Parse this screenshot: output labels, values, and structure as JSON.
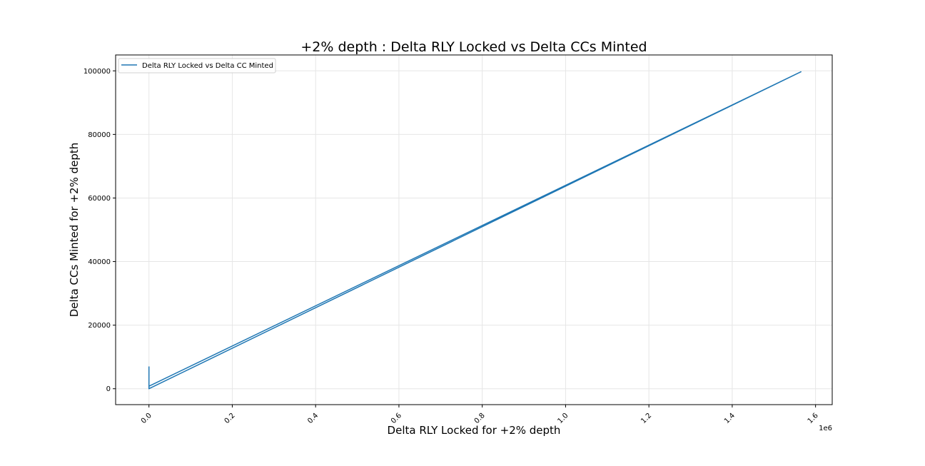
{
  "chart_data": {
    "type": "line",
    "title": "+2% depth : Delta RLY Locked vs Delta CCs Minted",
    "xlabel": "Delta RLY Locked for +2% depth",
    "ylabel": "Delta CCs Minted for +2% depth",
    "x_offset_label": "1e6",
    "x_scale_multiplier": 1000000,
    "xlim": [
      -0.08,
      1.64
    ],
    "ylim": [
      -5000,
      105000
    ],
    "x_ticks": [
      0.0,
      0.2,
      0.4,
      0.6,
      0.8,
      1.0,
      1.2,
      1.4,
      1.6
    ],
    "x_tick_labels": [
      "0.0",
      "0.2",
      "0.4",
      "0.6",
      "0.8",
      "1.0",
      "1.2",
      "1.4",
      "1.6"
    ],
    "y_ticks": [
      0,
      20000,
      40000,
      60000,
      80000,
      100000
    ],
    "y_tick_labels": [
      "0",
      "20000",
      "40000",
      "60000",
      "80000",
      "100000"
    ],
    "grid": true,
    "legend_position": "top-left",
    "colors": {
      "series": "#1f77b4",
      "grid": "#e6e6e6",
      "axis": "#000000"
    },
    "series": [
      {
        "name": "Delta RLY Locked vs Delta CC Minted",
        "x": [
          0.0,
          0.0,
          0.0,
          1.565,
          0.0
        ],
        "y": [
          7000,
          0,
          800,
          99700,
          0
        ]
      }
    ]
  }
}
